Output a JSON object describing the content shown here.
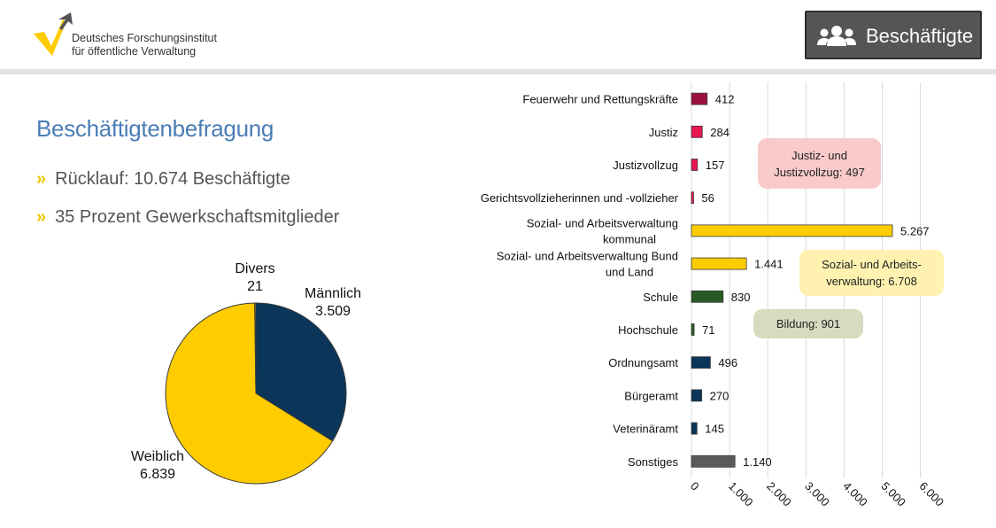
{
  "header": {
    "org_line1": "Deutsches Forschungsinstitut",
    "org_line2": "für öffentliche Verwaltung",
    "section_button": "Beschäftigte",
    "section_icon": "people-icon"
  },
  "main": {
    "title": "Beschäftigtenbefragung",
    "bullets": [
      "Rücklauf: 10.674 Beschäftigte",
      "35 Prozent Gewerkschaftsmitglieder"
    ],
    "callouts": {
      "justiz": "Justiz- und Justizvollzug: 497",
      "sozial": "Sozial- und Arbeits- verwaltung: 6.708",
      "bildung": "Bildung: 901"
    }
  },
  "colors": {
    "yellow": "#ffcc00",
    "navy": "#0b3559",
    "title_blue": "#4a7db5",
    "justiz_red": "#e8174f",
    "feuerwehr": "#9b1040",
    "green": "#2a5a24",
    "grey": "#5a5a5a"
  },
  "chart_data": [
    {
      "type": "pie",
      "categories": [
        "Männlich",
        "Weiblich",
        "Divers"
      ],
      "labels": [
        [
          "Männlich",
          "3.509"
        ],
        [
          "Weiblich",
          "6.839"
        ],
        [
          "Divers",
          "21"
        ]
      ],
      "values": [
        3509,
        6839,
        21
      ],
      "colors": [
        "#0b3559",
        "#ffcc00",
        "#ffcc00"
      ]
    },
    {
      "type": "bar",
      "orientation": "horizontal",
      "categories": [
        [
          "Feuerwehr und Rettungskräfte"
        ],
        [
          "Justiz"
        ],
        [
          "Justizvollzug"
        ],
        [
          "Gerichtsvollzieherinnen und -vollzieher"
        ],
        [
          "Sozial- und Arbeitsverwaltung",
          "kommunal"
        ],
        [
          "Sozial- und Arbeitsverwaltung Bund",
          "und Land"
        ],
        [
          "Schule"
        ],
        [
          "Hochschule"
        ],
        [
          "Ordnungsamt"
        ],
        [
          "Bürgeramt"
        ],
        [
          "Veterinäramt"
        ],
        [
          "Sonstiges"
        ]
      ],
      "values": [
        412,
        284,
        157,
        56,
        5267,
        1441,
        830,
        71,
        496,
        270,
        145,
        1140
      ],
      "value_labels": [
        "412",
        "284",
        "157",
        "56",
        "5.267",
        "1.441",
        "830",
        "71",
        "496",
        "270",
        "145",
        "1.140"
      ],
      "bar_colors": [
        "#9b1040",
        "#e8174f",
        "#e8174f",
        "#e8174f",
        "#ffcc00",
        "#ffcc00",
        "#2a5a24",
        "#2a5a24",
        "#0b3559",
        "#0b3559",
        "#0b3559",
        "#5a5a5a"
      ],
      "xlim": [
        0,
        6000
      ],
      "ticks": [
        0,
        1000,
        2000,
        3000,
        4000,
        5000,
        6000
      ],
      "tick_labels": [
        "0",
        "1.000",
        "2.000",
        "3.000",
        "4.000",
        "5.000",
        "6.000"
      ],
      "grid": true,
      "legend": "none"
    }
  ]
}
